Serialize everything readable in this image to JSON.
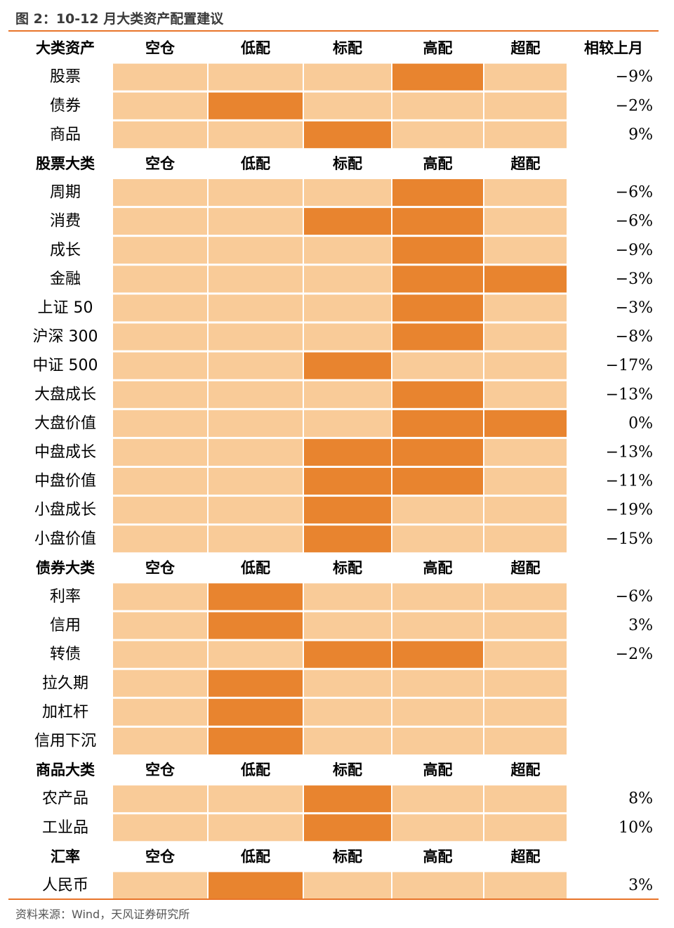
{
  "title": "图 2：10-12 月大类资产配置建议",
  "source": "资料来源：Wind，天风证券研究所",
  "chart_data": {
    "type": "table",
    "columns": [
      "空仓",
      "低配",
      "标配",
      "高配",
      "超配"
    ],
    "change_header": "相较上月",
    "colors": {
      "highlight": "#E8842F",
      "base": "#F9CB98",
      "rule": "#E8742A"
    },
    "sections": [
      {
        "header": "大类资产",
        "show_change_header": true,
        "rows": [
          {
            "name": "股票",
            "highlight": [
              "高配"
            ],
            "change": "−9%"
          },
          {
            "name": "债券",
            "highlight": [
              "低配"
            ],
            "change": "−2%"
          },
          {
            "name": "商品",
            "highlight": [
              "标配"
            ],
            "change": "9%"
          }
        ]
      },
      {
        "header": "股票大类",
        "rows": [
          {
            "name": "周期",
            "highlight": [
              "高配"
            ],
            "change": "−6%"
          },
          {
            "name": "消费",
            "highlight": [
              "标配",
              "高配"
            ],
            "change": "−6%"
          },
          {
            "name": "成长",
            "highlight": [
              "高配"
            ],
            "change": "−9%"
          },
          {
            "name": "金融",
            "highlight": [
              "高配",
              "超配"
            ],
            "change": "−3%"
          },
          {
            "name": "上证 50",
            "highlight": [
              "高配"
            ],
            "change": "−3%"
          },
          {
            "name": "沪深 300",
            "highlight": [
              "高配"
            ],
            "change": "−8%"
          },
          {
            "name": "中证 500",
            "highlight": [
              "标配"
            ],
            "change": "−17%"
          },
          {
            "name": "大盘成长",
            "highlight": [
              "高配"
            ],
            "change": "−13%"
          },
          {
            "name": "大盘价值",
            "highlight": [
              "高配",
              "超配"
            ],
            "change": "0%"
          },
          {
            "name": "中盘成长",
            "highlight": [
              "标配",
              "高配"
            ],
            "change": "−13%"
          },
          {
            "name": "中盘价值",
            "highlight": [
              "标配",
              "高配"
            ],
            "change": "−11%"
          },
          {
            "name": "小盘成长",
            "highlight": [
              "标配"
            ],
            "change": "−19%"
          },
          {
            "name": "小盘价值",
            "highlight": [
              "标配"
            ],
            "change": "−15%"
          }
        ]
      },
      {
        "header": "债券大类",
        "rows": [
          {
            "name": "利率",
            "highlight": [
              "低配"
            ],
            "change": "−6%"
          },
          {
            "name": "信用",
            "highlight": [
              "低配"
            ],
            "change": "3%"
          },
          {
            "name": "转债",
            "highlight": [
              "标配",
              "高配"
            ],
            "change": "−2%"
          },
          {
            "name": "拉久期",
            "highlight": [
              "低配"
            ],
            "change": ""
          },
          {
            "name": "加杠杆",
            "highlight": [
              "低配"
            ],
            "change": ""
          },
          {
            "name": "信用下沉",
            "highlight": [
              "低配"
            ],
            "change": ""
          }
        ]
      },
      {
        "header": "商品大类",
        "rows": [
          {
            "name": "农产品",
            "highlight": [
              "标配"
            ],
            "change": "8%"
          },
          {
            "name": "工业品",
            "highlight": [
              "标配"
            ],
            "change": "10%"
          }
        ]
      },
      {
        "header": "汇率",
        "rows": [
          {
            "name": "人民币",
            "highlight": [
              "低配"
            ],
            "change": "3%"
          }
        ]
      }
    ]
  }
}
